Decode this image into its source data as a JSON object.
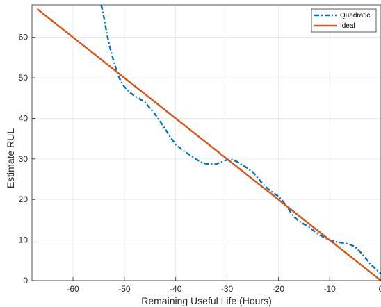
{
  "chart_data": {
    "type": "line",
    "title": "",
    "xlabel": "Remaining Useful Life (Hours)",
    "ylabel": "Estimate RUL",
    "xlim": [
      -68,
      0
    ],
    "ylim": [
      0,
      68
    ],
    "xticks": [
      -60,
      -50,
      -40,
      -30,
      -20,
      -10,
      0
    ],
    "yticks": [
      0,
      10,
      20,
      30,
      40,
      50,
      60
    ],
    "grid": true,
    "legend_position": "top-right",
    "series": [
      {
        "name": "Quadratic",
        "style": "dash-dot",
        "color": "#0072BD",
        "x": [
          -54.5,
          -54,
          -53.5,
          -53,
          -52.5,
          -52,
          -51.5,
          -51,
          -50.5,
          -50,
          -49,
          -48,
          -47,
          -46,
          -45,
          -44,
          -43,
          -42,
          -41,
          -40,
          -39,
          -38,
          -37,
          -36,
          -35,
          -34,
          -33,
          -32,
          -31,
          -30,
          -29,
          -28,
          -27,
          -26,
          -25,
          -24,
          -23,
          -22,
          -21,
          -20,
          -19,
          -18,
          -17,
          -16,
          -15,
          -14,
          -13,
          -12,
          -11,
          -10,
          -9,
          -8,
          -7,
          -6,
          -5,
          -4,
          -3,
          -2,
          -1,
          0
        ],
        "y": [
          68,
          65,
          61.5,
          58.5,
          56,
          53.8,
          51.8,
          50,
          48.8,
          47.8,
          46.5,
          45.5,
          44.8,
          44,
          42.5,
          41,
          39.2,
          37.3,
          35.3,
          33.6,
          32.5,
          31.6,
          30.8,
          29.9,
          29.2,
          28.8,
          28.7,
          28.8,
          29.3,
          29.8,
          29.8,
          29.3,
          28.5,
          27.7,
          26.8,
          25.3,
          23.8,
          22.6,
          21.6,
          20.8,
          19.4,
          17.6,
          15.8,
          14.7,
          13.9,
          13.2,
          12.2,
          11.3,
          10.6,
          10,
          9.6,
          9.4,
          9.2,
          8.9,
          8.3,
          7,
          5.5,
          4,
          2.8,
          1.7
        ]
      },
      {
        "name": "Ideal",
        "style": "solid",
        "color": "#D95319",
        "x": [
          -67,
          0
        ],
        "y": [
          67,
          0
        ]
      }
    ]
  }
}
